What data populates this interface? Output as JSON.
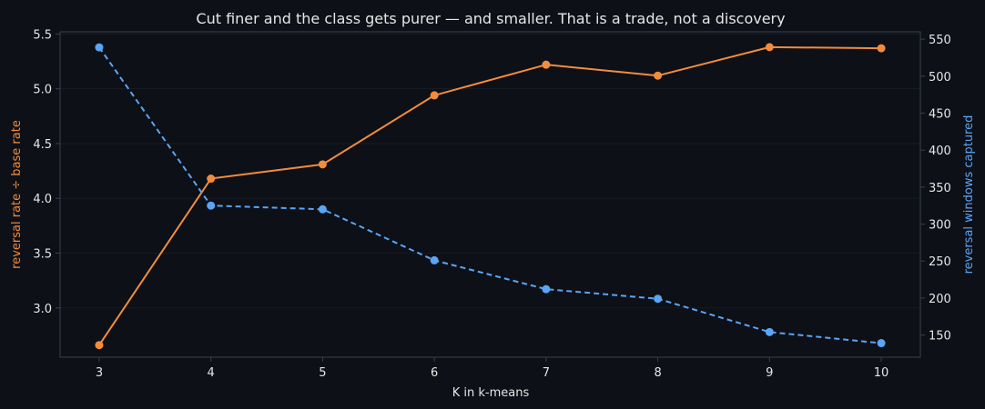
{
  "chart_data": {
    "type": "line",
    "title": "Cut finer and the class gets purer — and smaller. That is a trade, not a discovery",
    "xlabel": "K in k-means",
    "ylabel_left": "reversal rate ÷ base rate",
    "ylabel_right": "reversal windows captured",
    "x": [
      3,
      4,
      5,
      6,
      7,
      8,
      9,
      10
    ],
    "xlim": [
      2.65,
      10.35
    ],
    "ylim_left": [
      2.55,
      5.52
    ],
    "ylim_right": [
      120,
      560
    ],
    "x_ticks": [
      "3",
      "4",
      "5",
      "6",
      "7",
      "8",
      "9",
      "10"
    ],
    "y_ticks_left": [
      "3.0",
      "3.5",
      "4.0",
      "4.5",
      "5.0",
      "5.5"
    ],
    "y_ticks_right": [
      "150",
      "200",
      "250",
      "300",
      "350",
      "400",
      "450",
      "500",
      "550"
    ],
    "grid": true,
    "series": [
      {
        "axis": "left",
        "color": "#f28c3c",
        "style": "solid",
        "values": [
          2.66,
          4.18,
          4.31,
          4.94,
          5.22,
          5.12,
          5.38,
          5.37
        ]
      },
      {
        "axis": "right",
        "color": "#5aa5f5",
        "style": "dashed",
        "values": [
          539,
          325,
          320,
          251,
          212,
          199,
          154,
          139
        ]
      }
    ],
    "colors": {
      "background": "#0d1017",
      "axes": "#3a3f4a",
      "grid": "#171b23",
      "text": "#e6e6e6"
    }
  }
}
